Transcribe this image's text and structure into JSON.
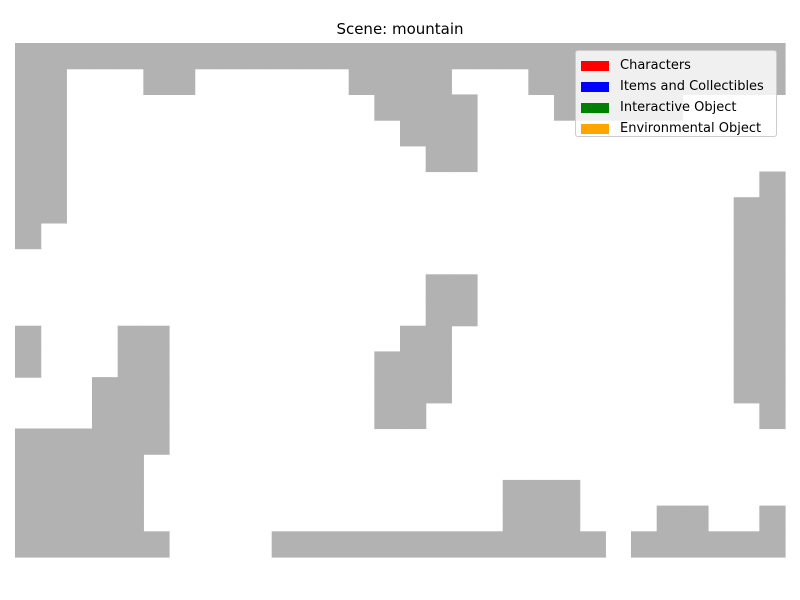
{
  "title": "Scene: mountain",
  "legend": [
    {
      "label": "Characters",
      "color": "#ff0000"
    },
    {
      "label": "Items and Collectibles",
      "color": "#0000ff"
    },
    {
      "label": "Interactive Object",
      "color": "#008000"
    },
    {
      "label": "Environmental Object",
      "color": "#ffa500"
    }
  ],
  "terrain_color": "#b2b2b2",
  "grid": {
    "cols": 30,
    "rows": 20,
    "rows_data": [
      "111111111111111111111111111111",
      "110001100000011110001111111111",
      "110000000000001111000111110000",
      "110000000000000111000000000000",
      "110000000000000011000000000000",
      "110000000000000000000000000001",
      "110000000000000000000000000011",
      "100000000000000000000000000011",
      "000000000000000000000000000011",
      "000000000000000011000000000011",
      "000000000000000011000000000011",
      "100011000000000110000000000011",
      "100011000000001110000000000011",
      "000111000000001110000000000011",
      "000111000000001100000000000001",
      "111111000000000000000000000000",
      "111110000000000000000000000000",
      "111110000000000000011100000000",
      "111110000000000000011100011001",
      "111111000011111111111110111111"
    ]
  }
}
